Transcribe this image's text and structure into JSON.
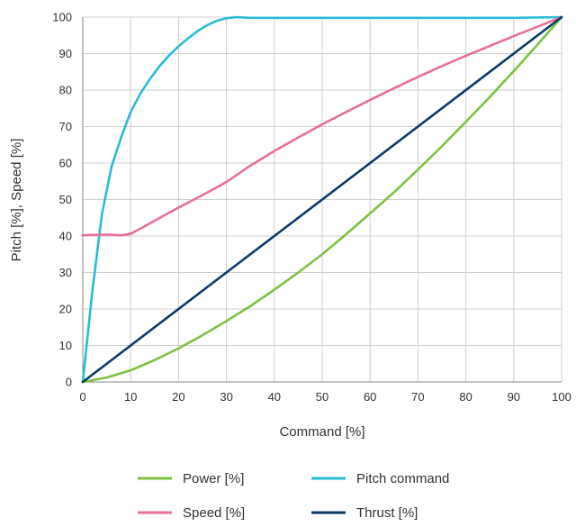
{
  "chart_data": {
    "type": "line",
    "xlabel": "Command [%]",
    "ylabel": "Pitch [%], Speed [%]",
    "xlim": [
      0,
      100
    ],
    "ylim": [
      0,
      100
    ],
    "xticks": [
      "0",
      "10",
      "20",
      "30",
      "40",
      "50",
      "60",
      "70",
      "80",
      "90",
      "100"
    ],
    "yticks": [
      "0",
      "10",
      "20",
      "30",
      "40",
      "50",
      "60",
      "70",
      "80",
      "90",
      "100"
    ],
    "grid": true,
    "legend_position": "bottom",
    "series": [
      {
        "name": "Power [%]",
        "color": "#7dc242",
        "x": [
          0,
          5,
          10,
          15,
          20,
          25,
          30,
          35,
          40,
          45,
          50,
          55,
          60,
          65,
          70,
          75,
          80,
          85,
          90,
          95,
          100
        ],
        "y": [
          0,
          1.2,
          3.2,
          6,
          9.2,
          12.8,
          16.7,
          20.8,
          25.3,
          30,
          35,
          40.5,
          46.2,
          52,
          58.2,
          64.6,
          71.3,
          78.1,
          85.2,
          92.5,
          100
        ]
      },
      {
        "name": "Pitch command",
        "color": "#29bcd6",
        "x": [
          0,
          2,
          4,
          6,
          8,
          10,
          12,
          14,
          16,
          18,
          20,
          22,
          24,
          26,
          28,
          30,
          32,
          35,
          40,
          50,
          60,
          70,
          80,
          90,
          100
        ],
        "y": [
          0,
          25,
          46,
          59,
          67,
          74,
          79,
          83,
          86.5,
          89.5,
          92,
          94.2,
          96.2,
          97.8,
          99,
          99.7,
          100,
          99.8,
          99.8,
          99.8,
          99.8,
          99.8,
          99.8,
          99.8,
          100
        ]
      },
      {
        "name": "Speed [%]",
        "color": "#e8709a",
        "x": [
          0,
          2,
          5,
          8,
          10,
          12,
          15,
          20,
          25,
          30,
          35,
          40,
          45,
          50,
          55,
          60,
          65,
          70,
          75,
          80,
          85,
          90,
          95,
          100
        ],
        "y": [
          40.2,
          40.3,
          40.4,
          40.2,
          40.6,
          42,
          44.2,
          47.8,
          51.2,
          54.8,
          59.3,
          63.3,
          67,
          70.6,
          74,
          77.3,
          80.5,
          83.6,
          86.6,
          89.4,
          92.1,
          94.8,
          97.4,
          100
        ]
      },
      {
        "name": "Thrust [%]",
        "color": "#0d3a6a",
        "x": [
          0,
          100
        ],
        "y": [
          0,
          100
        ]
      }
    ]
  }
}
